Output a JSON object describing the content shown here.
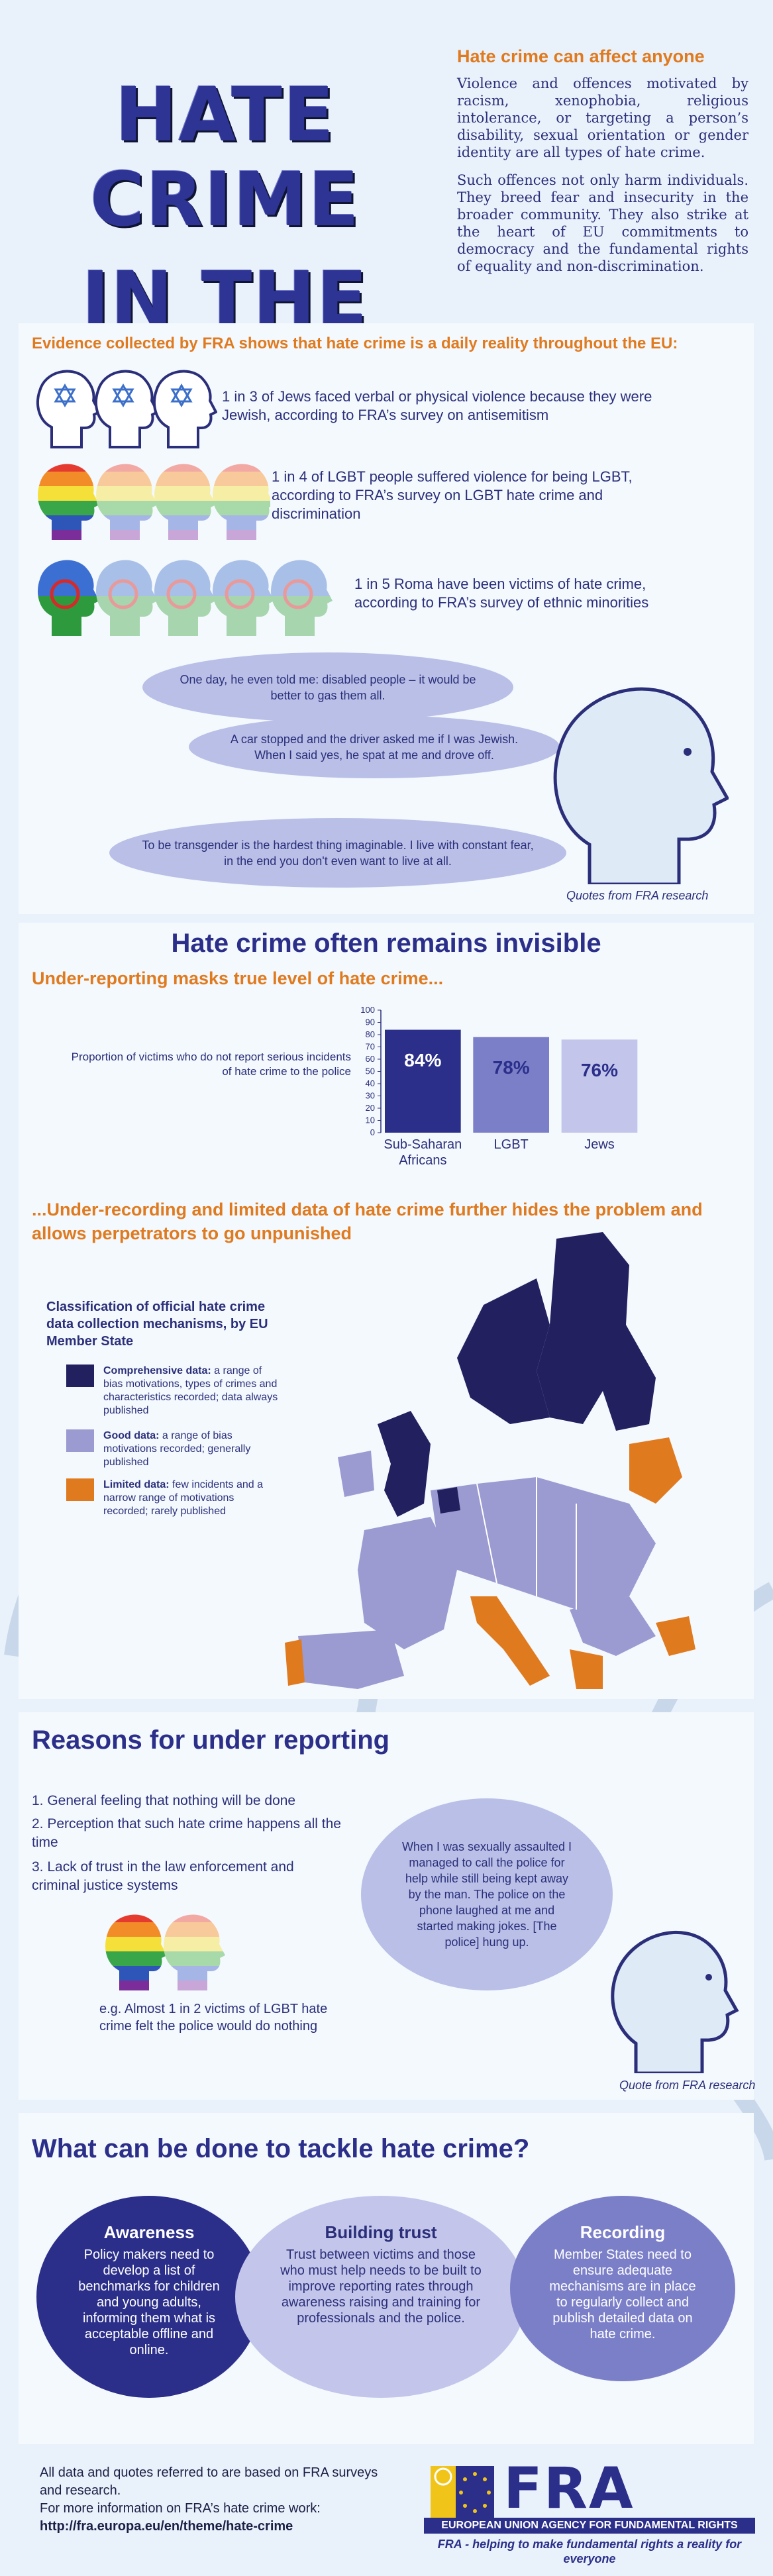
{
  "header": {
    "title_line1": "HATE CRIME",
    "title_line2": "IN THE EU",
    "subtitle": "Hate crime can affect anyone",
    "para1": "Violence and offences motivated by racism, xenophobia, religious intolerance, or targeting a person’s disability, sexual orientation or gender identity are all types of hate crime.",
    "para2": "Such offences not only harm individuals. They breed fear and insecurity in the broader community. They also strike at the heart of EU commitments to democracy and the fundamental rights of equality and non-discrimination."
  },
  "evidence": {
    "title": "Evidence collected by FRA shows that hate crime is a daily reality throughout the EU:",
    "stat1": "1 in 3 of Jews faced verbal or physical violence because they were Jewish, according to FRA’s survey on antisemitism",
    "stat2": "1 in 4 of LGBT people suffered violence for being LGBT, according to FRA’s survey on LGBT hate crime and discrimination",
    "stat3": "1 in 5 Roma have been victims of hate crime, according to FRA’s survey of ethnic minorities",
    "quote1": "One day, he even told me: disabled people – it would be better to gas them all.",
    "quote2": "A car stopped and the driver asked me if I was Jewish. When I said yes, he spat at me and drove off.",
    "quote3": "To be transgender is the hardest thing imaginable. I live with constant fear, in the end you don't even want to live at all.",
    "quotes_caption": "Quotes from FRA research"
  },
  "invisible": {
    "title": "Hate crime often remains invisible",
    "sub1": "Under-reporting masks true level of hate crime...",
    "chart_caption": "Proportion of victims who do not report serious incidents of hate crime to the police",
    "sub2": "...Under-recording and limited data of hate crime further hides the problem and allows perpetrators to go unpunished",
    "map_title": "Classification of official hate crime data collection mechanisms, by EU Member State",
    "legend": [
      {
        "bold": "Comprehensive data:",
        "text": " a range of bias motivations, types of crimes and characteristics recorded; data always published",
        "color": "#23205f"
      },
      {
        "bold": "Good data:",
        "text": " a range of bias motivations recorded; generally published",
        "color": "#9b9bd1"
      },
      {
        "bold": "Limited data:",
        "text": " few incidents and a narrow range of motivations recorded; rarely published",
        "color": "#e07a1f"
      }
    ]
  },
  "chart_data": {
    "type": "bar",
    "categories": [
      "Sub-Saharan Africans",
      "LGBT",
      "Jews"
    ],
    "values": [
      84,
      78,
      76
    ],
    "value_labels": [
      "84%",
      "78%",
      "76%"
    ],
    "ylim": [
      0,
      100
    ],
    "yticks": [
      "100",
      "90",
      "80",
      "70",
      "60",
      "50",
      "40",
      "30",
      "20",
      "10",
      "0"
    ],
    "colors": [
      "#2b2f8a",
      "#7b7fc8",
      "#c3c6ea"
    ],
    "label_colors": [
      "#ffffff",
      "#2b2f8a",
      "#2b2f8a"
    ]
  },
  "reasons": {
    "title": "Reasons for under reporting",
    "items": [
      "1. General feeling that nothing will be done",
      "2. Perception that such hate crime happens all the time",
      "3. Lack of trust in the law enforcement and criminal justice systems"
    ],
    "example": "e.g. Almost 1 in 2 victims of LGBT hate crime felt the police would do nothing",
    "quote": "When I was sexually assaulted I managed to call the police for help while still being kept away by the man. The police on the phone laughed at me and started making jokes. [The police] hung up.",
    "quote_caption": "Quote from FRA research"
  },
  "tackle": {
    "title": "What can be done to tackle hate crime?",
    "cards": [
      {
        "title": "Awareness",
        "body": "Policy makers need to develop a list of benchmarks for children and young adults, informing them what is acceptable offline and online."
      },
      {
        "title": "Building trust",
        "body": "Trust between victims and those who must help needs to be built to improve reporting rates through awareness raising and training for professionals and the police."
      },
      {
        "title": "Recording",
        "body": "Member States need to ensure adequate mechanisms are in place to regularly collect and publish detailed data on hate crime."
      }
    ]
  },
  "footer": {
    "line1": "All data and quotes referred to are based on FRA surveys and research.",
    "line2": "For more information on FRA’s hate crime work:",
    "url": "http://fra.europa.eu/en/theme/hate-crime",
    "logo_text": "FRA",
    "agency": "EUROPEAN UNION AGENCY FOR FUNDAMENTAL RIGHTS",
    "tagline": "FRA - helping to make fundamental rights a reality for everyone"
  }
}
